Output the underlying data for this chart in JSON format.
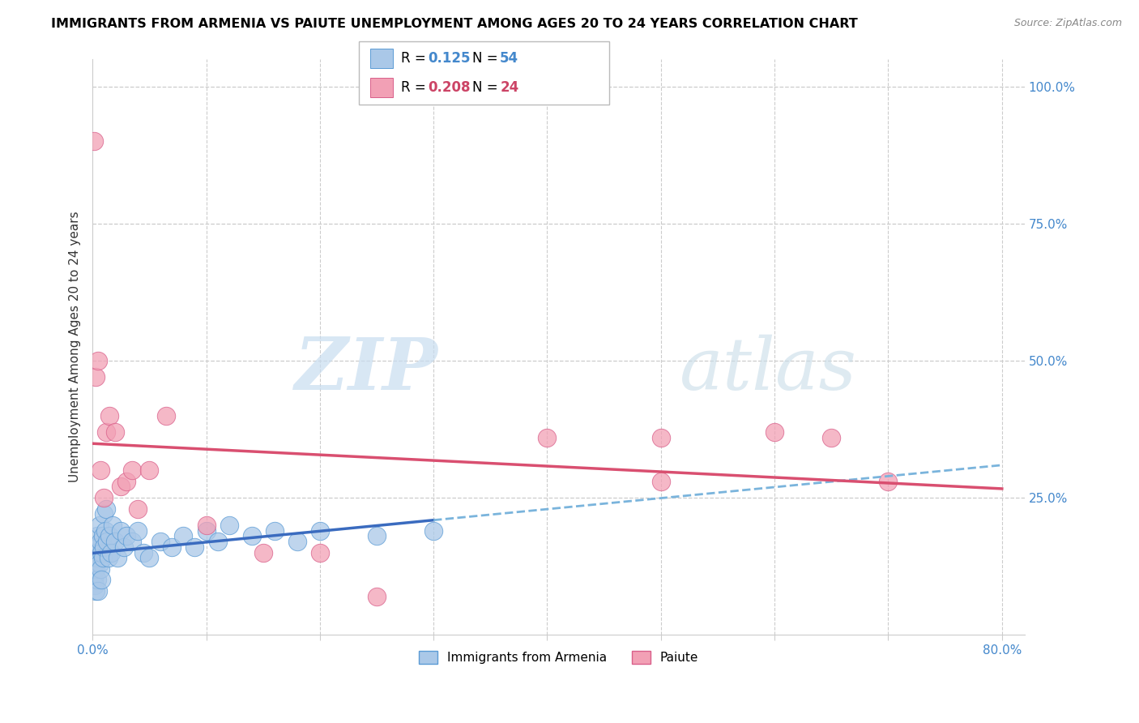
{
  "title": "IMMIGRANTS FROM ARMENIA VS PAIUTE UNEMPLOYMENT AMONG AGES 20 TO 24 YEARS CORRELATION CHART",
  "source": "Source: ZipAtlas.com",
  "ylabel": "Unemployment Among Ages 20 to 24 years",
  "blue_R": 0.125,
  "blue_N": 54,
  "pink_R": 0.208,
  "pink_N": 24,
  "blue_color": "#aac8e8",
  "blue_edge": "#5b9bd5",
  "pink_color": "#f2a0b5",
  "pink_edge": "#d95f8a",
  "trend_blue_solid": "#3a6bbf",
  "trend_pink_solid": "#d94f70",
  "trend_blue_dashed": "#7ab4dc",
  "legend_label_blue": "Immigrants from Armenia",
  "legend_label_pink": "Paiute",
  "blue_R_color": "#4488cc",
  "blue_N_color": "#4488cc",
  "pink_R_color": "#cc4466",
  "pink_N_color": "#cc4466",
  "blue_scatter_x": [
    0.001,
    0.001,
    0.001,
    0.002,
    0.002,
    0.002,
    0.002,
    0.003,
    0.003,
    0.003,
    0.004,
    0.004,
    0.004,
    0.005,
    0.005,
    0.006,
    0.006,
    0.007,
    0.007,
    0.008,
    0.008,
    0.009,
    0.009,
    0.01,
    0.01,
    0.011,
    0.012,
    0.013,
    0.014,
    0.015,
    0.016,
    0.018,
    0.02,
    0.022,
    0.025,
    0.028,
    0.03,
    0.035,
    0.04,
    0.045,
    0.05,
    0.06,
    0.07,
    0.08,
    0.09,
    0.1,
    0.11,
    0.12,
    0.14,
    0.16,
    0.18,
    0.2,
    0.25,
    0.3
  ],
  "blue_scatter_y": [
    0.14,
    0.12,
    0.1,
    0.16,
    0.13,
    0.11,
    0.09,
    0.15,
    0.12,
    0.08,
    0.18,
    0.14,
    0.1,
    0.16,
    0.08,
    0.2,
    0.13,
    0.17,
    0.12,
    0.15,
    0.1,
    0.18,
    0.14,
    0.22,
    0.16,
    0.19,
    0.23,
    0.17,
    0.14,
    0.18,
    0.15,
    0.2,
    0.17,
    0.14,
    0.19,
    0.16,
    0.18,
    0.17,
    0.19,
    0.15,
    0.14,
    0.17,
    0.16,
    0.18,
    0.16,
    0.19,
    0.17,
    0.2,
    0.18,
    0.19,
    0.17,
    0.19,
    0.18,
    0.19
  ],
  "pink_scatter_x": [
    0.001,
    0.003,
    0.005,
    0.007,
    0.01,
    0.012,
    0.015,
    0.02,
    0.025,
    0.03,
    0.035,
    0.04,
    0.05,
    0.065,
    0.1,
    0.15,
    0.2,
    0.25,
    0.5,
    0.6,
    0.65,
    0.7,
    0.5,
    0.4
  ],
  "pink_scatter_y": [
    0.9,
    0.47,
    0.5,
    0.3,
    0.25,
    0.37,
    0.4,
    0.37,
    0.27,
    0.28,
    0.3,
    0.23,
    0.3,
    0.4,
    0.2,
    0.15,
    0.15,
    0.07,
    0.36,
    0.37,
    0.36,
    0.28,
    0.28,
    0.36
  ],
  "xlim": [
    0.0,
    0.82
  ],
  "ylim": [
    0.0,
    1.05
  ],
  "ytick_vals": [
    0.25,
    0.5,
    0.75,
    1.0
  ],
  "ytick_labels": [
    "25.0%",
    "50.0%",
    "75.0%",
    "100.0%"
  ],
  "xtick_vals": [
    0.0,
    0.1,
    0.2,
    0.3,
    0.4,
    0.5,
    0.6,
    0.7,
    0.8
  ],
  "xtick_labels": [
    "0.0%",
    "",
    "",
    "",
    "",
    "",
    "",
    "",
    "80.0%"
  ],
  "grid_color": "#cccccc",
  "watermark_zip_color": "#c8ddf0",
  "watermark_atlas_color": "#c8dce8"
}
